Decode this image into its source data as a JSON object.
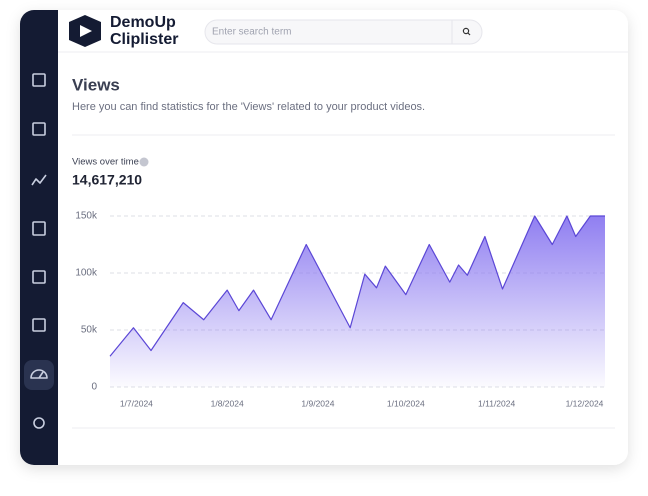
{
  "header": {
    "brand_line1": "DemoUp",
    "brand_line2": "Cliplister",
    "search_placeholder": "Enter search term"
  },
  "page": {
    "title": "Views",
    "description": "Here you can find statistics for the 'Views' related to your product videos."
  },
  "chart_data": {
    "type": "area",
    "title": "Views over time",
    "subtitle": "14,617,210",
    "x": [
      "2024-06-22",
      "2024-06-30",
      "2024-07-06",
      "2024-07-17",
      "2024-07-24",
      "2024-08-01",
      "2024-08-05",
      "2024-08-10",
      "2024-08-16",
      "2024-08-28",
      "2024-09-12",
      "2024-09-17",
      "2024-09-21",
      "2024-09-24",
      "2024-10-01",
      "2024-10-09",
      "2024-10-16",
      "2024-10-19",
      "2024-10-22",
      "2024-10-28",
      "2024-11-03",
      "2024-11-14",
      "2024-11-20",
      "2024-11-25",
      "2024-11-28",
      "2024-12-03",
      "2024-12-08"
    ],
    "series": [
      {
        "name": "Views",
        "color": "#5b47d6",
        "values": [
          27000,
          52000,
          32000,
          74000,
          59000,
          85000,
          67000,
          85000,
          59000,
          125000,
          52000,
          99000,
          87000,
          106000,
          81000,
          125000,
          92000,
          107000,
          98000,
          132000,
          86000,
          150000,
          125000,
          150000,
          132000,
          150000,
          150000
        ]
      }
    ],
    "xlim": [
      "2024-06-22",
      "2024-12-08"
    ],
    "xticks": [
      {
        "value": "2024-07-01",
        "label": "1/7/2024"
      },
      {
        "value": "2024-08-01",
        "label": "1/8/2024"
      },
      {
        "value": "2024-09-01",
        "label": "1/9/2024"
      },
      {
        "value": "2024-10-01",
        "label": "1/10/2024"
      },
      {
        "value": "2024-11-01",
        "label": "1/11/2024"
      },
      {
        "value": "2024-12-01",
        "label": "1/12/2024"
      }
    ],
    "ylim": [
      0,
      150000
    ],
    "yticks": [
      0,
      {
        "value": 50000,
        "label": "50k"
      },
      {
        "value": 100000,
        "label": "100k"
      },
      {
        "value": 150000,
        "label": "150k"
      }
    ],
    "grid": true
  }
}
